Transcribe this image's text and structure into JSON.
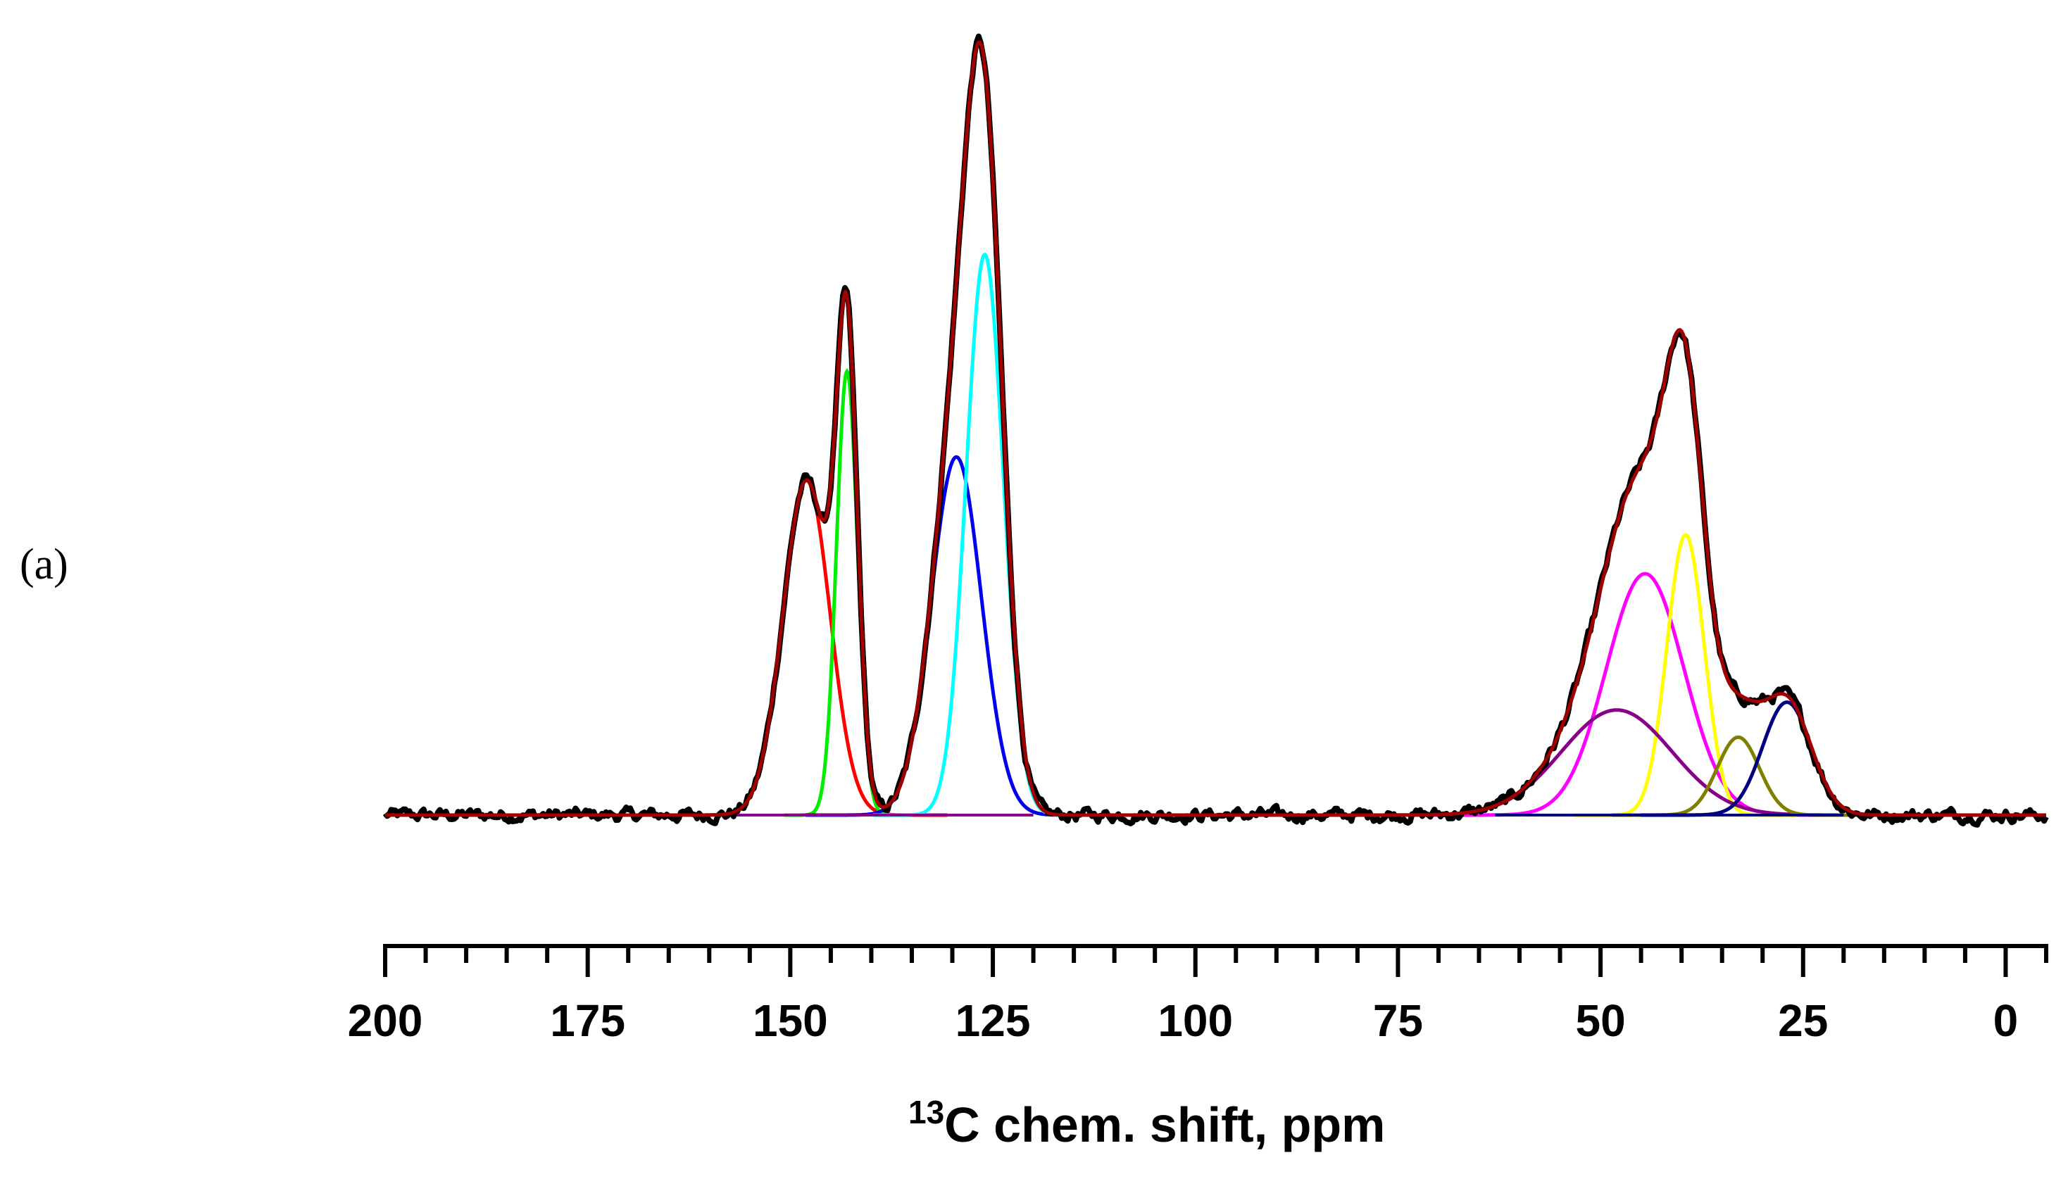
{
  "panel_label": "(a)",
  "chart_data": {
    "type": "line",
    "title": "",
    "xlabel": {
      "superscript": "13",
      "text": "C chem. shift, ppm"
    },
    "ylabel": "",
    "x_reversed": true,
    "xlim": [
      200,
      -5
    ],
    "ylim": [
      -0.05,
      1.02
    ],
    "xticks": [
      200,
      175,
      150,
      125,
      100,
      75,
      50,
      25,
      0
    ],
    "xticks_minor_step": 5,
    "yaxis_visible": false,
    "grid": false,
    "legend": "none",
    "components": [
      {
        "color": "#ff0000",
        "center": 148.0,
        "height": 0.43,
        "sigma": 2.9
      },
      {
        "color": "#00ee00",
        "center": 143.0,
        "height": 0.57,
        "sigma": 1.3
      },
      {
        "color": "#0000ee",
        "center": 129.5,
        "height": 0.46,
        "sigma": 3.1
      },
      {
        "color": "#00ffff",
        "center": 126.0,
        "height": 0.72,
        "sigma": 2.3
      },
      {
        "color": "#ff00ff",
        "center": 44.5,
        "height": 0.31,
        "sigma": 4.8
      },
      {
        "color": "#ffff00",
        "center": 39.5,
        "height": 0.36,
        "sigma": 2.3
      },
      {
        "color": "#880088",
        "center": 48.0,
        "height": 0.135,
        "sigma": 6.8
      },
      {
        "color": "#808000",
        "center": 33.0,
        "height": 0.1,
        "sigma": 2.6
      },
      {
        "color": "#000080",
        "center": 27.0,
        "height": 0.145,
        "sigma": 3.0
      }
    ],
    "fit_color": "#a00000",
    "experimental_color": "#000000"
  }
}
